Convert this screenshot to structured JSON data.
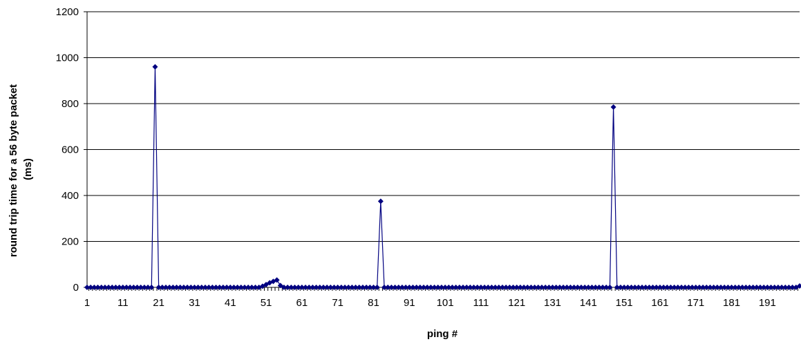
{
  "chart_data": {
    "type": "line",
    "title": "",
    "xlabel": "ping #",
    "ylabel_lines": [
      "round trip time for a 56 byte packet",
      "(ms)"
    ],
    "ylim": [
      0,
      1200
    ],
    "yticks": [
      0,
      200,
      400,
      600,
      800,
      1000,
      1200
    ],
    "x_range": [
      1,
      200
    ],
    "xtick_labels": [
      "1",
      "11",
      "21",
      "31",
      "41",
      "51",
      "61",
      "71",
      "81",
      "91",
      "101",
      "111",
      "121",
      "131",
      "141",
      "151",
      "161",
      "171",
      "181",
      "191"
    ],
    "grid": true,
    "legend": "none",
    "series": [
      {
        "color": "#000080",
        "marker": "diamond",
        "baseline": 0,
        "points": [
          {
            "x": 20,
            "y": 960
          },
          {
            "x": 50,
            "y": 5
          },
          {
            "x": 51,
            "y": 12
          },
          {
            "x": 52,
            "y": 20
          },
          {
            "x": 53,
            "y": 26
          },
          {
            "x": 54,
            "y": 32
          },
          {
            "x": 55,
            "y": 8
          },
          {
            "x": 83,
            "y": 375
          },
          {
            "x": 148,
            "y": 785
          },
          {
            "x": 200,
            "y": 6
          }
        ]
      }
    ]
  }
}
